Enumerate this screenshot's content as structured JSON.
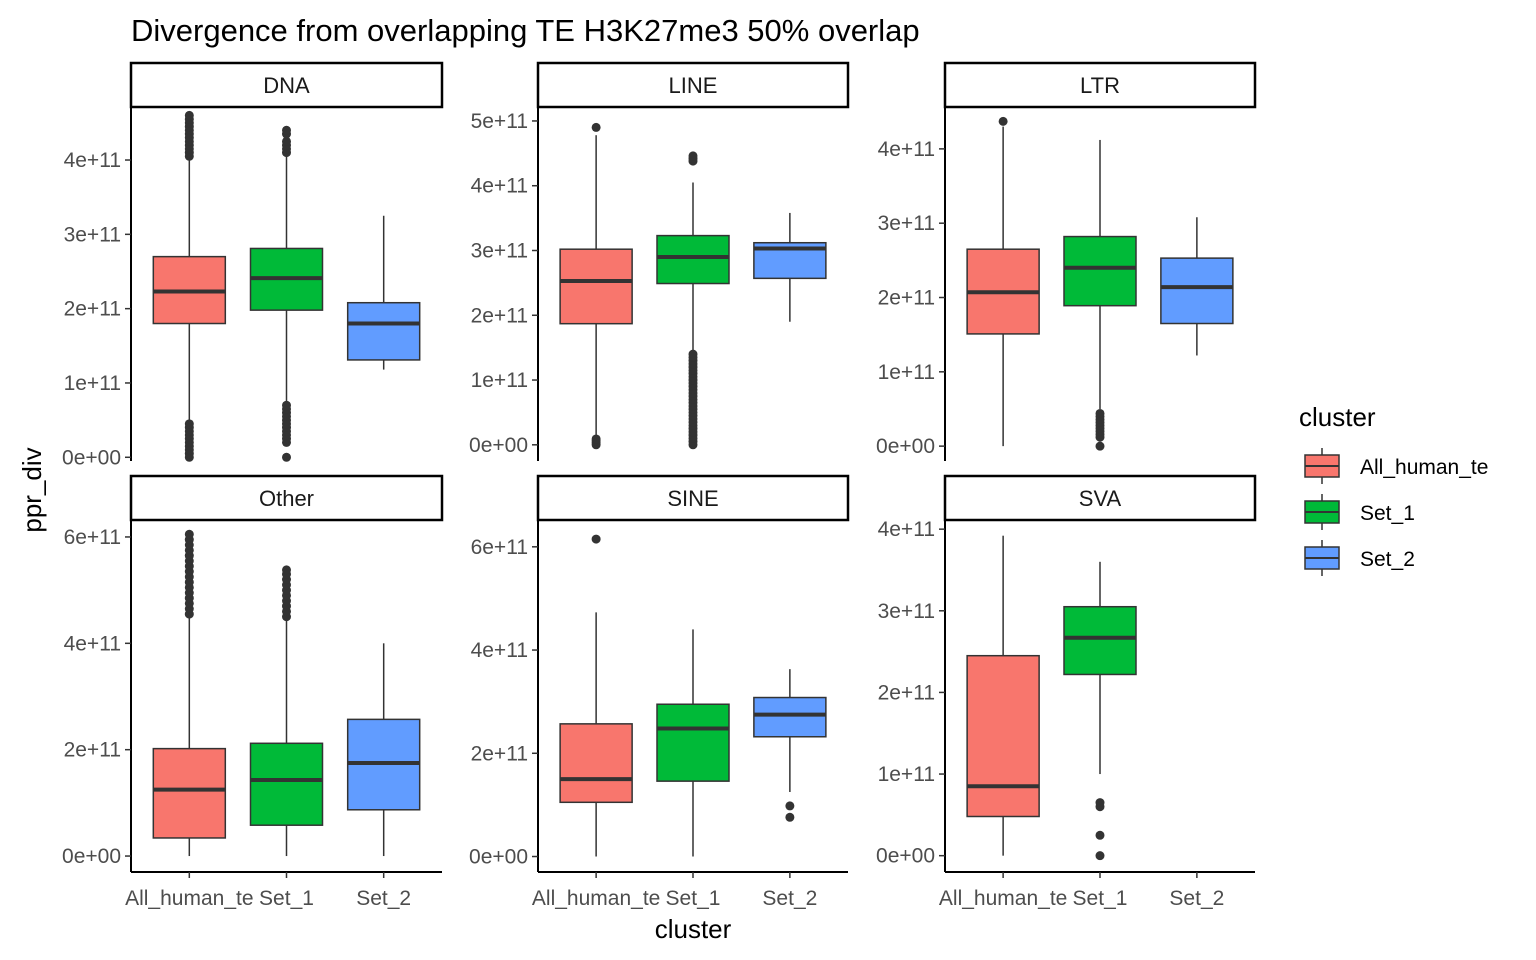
{
  "chart_data": {
    "type": "boxplot",
    "title": "Divergence from overlapping TE H3K27me3 50% overlap",
    "xlabel": "cluster",
    "ylabel": "ppr_div",
    "grid": false,
    "legend": {
      "title": "cluster",
      "position": "right",
      "entries": [
        {
          "label": "All_human_te",
          "color": "#F8766D"
        },
        {
          "label": "Set_1",
          "color": "#00BA38"
        },
        {
          "label": "Set_2",
          "color": "#619CFF"
        }
      ]
    },
    "categories": [
      "All_human_te",
      "Set_1",
      "Set_2"
    ],
    "facets": [
      {
        "name": "DNA",
        "ylim": [
          -5000000000.0,
          470000000000.0
        ],
        "yticks": [
          0,
          100000000000.0,
          200000000000.0,
          300000000000.0,
          400000000000.0
        ],
        "yticklabels": [
          "0e+00",
          "1e+11",
          "2e+11",
          "3e+11",
          "4e+11"
        ],
        "boxes": [
          {
            "category": "All_human_te",
            "lower": 50000000000.0,
            "q1": 180000000000.0,
            "median": 223000000000.0,
            "q3": 270000000000.0,
            "upper": 400000000000.0,
            "outliers": [
              0,
              5000000000.0,
              10000000000.0,
              15000000000.0,
              20000000000.0,
              25000000000.0,
              30000000000.0,
              35000000000.0,
              40000000000.0,
              45000000000.0,
              405000000000.0,
              410000000000.0,
              415000000000.0,
              420000000000.0,
              425000000000.0,
              430000000000.0,
              435000000000.0,
              440000000000.0,
              445000000000.0,
              450000000000.0,
              455000000000.0,
              460000000000.0
            ]
          },
          {
            "category": "Set_1",
            "lower": 75000000000.0,
            "q1": 198000000000.0,
            "median": 241000000000.0,
            "q3": 281000000000.0,
            "upper": 408000000000.0,
            "outliers": [
              0,
              20000000000.0,
              25000000000.0,
              30000000000.0,
              35000000000.0,
              40000000000.0,
              45000000000.0,
              50000000000.0,
              55000000000.0,
              60000000000.0,
              65000000000.0,
              70000000000.0,
              410000000000.0,
              415000000000.0,
              420000000000.0,
              425000000000.0,
              435000000000.0,
              440000000000.0
            ]
          },
          {
            "category": "Set_2",
            "lower": 118000000000.0,
            "q1": 131000000000.0,
            "median": 180000000000.0,
            "q3": 208000000000.0,
            "upper": 325000000000.0,
            "outliers": []
          }
        ]
      },
      {
        "name": "LINE",
        "ylim": [
          -25000000000.0,
          520000000000.0
        ],
        "yticks": [
          0,
          100000000000.0,
          200000000000.0,
          300000000000.0,
          400000000000.0,
          500000000000.0
        ],
        "yticklabels": [
          "0e+00",
          "1e+11",
          "2e+11",
          "3e+11",
          "4e+11",
          "5e+11"
        ],
        "boxes": [
          {
            "category": "All_human_te",
            "lower": 10000000000.0,
            "q1": 187000000000.0,
            "median": 253000000000.0,
            "q3": 302000000000.0,
            "upper": 478000000000.0,
            "outliers": [
              0,
              3000000000.0,
              6000000000.0,
              9000000000.0,
              490000000000.0
            ]
          },
          {
            "category": "Set_1",
            "lower": 142000000000.0,
            "q1": 249000000000.0,
            "median": 290000000000.0,
            "q3": 323000000000.0,
            "upper": 405000000000.0,
            "outliers": [
              0,
              5000000000.0,
              10000000000.0,
              15000000000.0,
              20000000000.0,
              25000000000.0,
              30000000000.0,
              35000000000.0,
              40000000000.0,
              45000000000.0,
              50000000000.0,
              55000000000.0,
              60000000000.0,
              65000000000.0,
              70000000000.0,
              75000000000.0,
              80000000000.0,
              85000000000.0,
              90000000000.0,
              95000000000.0,
              100000000000.0,
              105000000000.0,
              110000000000.0,
              115000000000.0,
              120000000000.0,
              125000000000.0,
              130000000000.0,
              135000000000.0,
              140000000000.0,
              438000000000.0,
              442000000000.0,
              446000000000.0
            ]
          },
          {
            "category": "Set_2",
            "lower": 190000000000.0,
            "q1": 257000000000.0,
            "median": 303000000000.0,
            "q3": 312000000000.0,
            "upper": 358000000000.0,
            "outliers": []
          }
        ]
      },
      {
        "name": "LTR",
        "ylim": [
          -20000000000.0,
          455000000000.0
        ],
        "yticks": [
          0,
          100000000000.0,
          200000000000.0,
          300000000000.0,
          400000000000.0
        ],
        "yticklabels": [
          "0e+00",
          "1e+11",
          "2e+11",
          "3e+11",
          "4e+11"
        ],
        "boxes": [
          {
            "category": "All_human_te",
            "lower": 0,
            "q1": 151000000000.0,
            "median": 207000000000.0,
            "q3": 265000000000.0,
            "upper": 430000000000.0,
            "outliers": [
              437000000000.0
            ]
          },
          {
            "category": "Set_1",
            "lower": 50000000000.0,
            "q1": 189000000000.0,
            "median": 240000000000.0,
            "q3": 282000000000.0,
            "upper": 412000000000.0,
            "outliers": [
              0,
              12000000000.0,
              16000000000.0,
              20000000000.0,
              24000000000.0,
              28000000000.0,
              32000000000.0,
              36000000000.0,
              40000000000.0,
              44000000000.0
            ]
          },
          {
            "category": "Set_2",
            "lower": 122000000000.0,
            "q1": 165000000000.0,
            "median": 214000000000.0,
            "q3": 253000000000.0,
            "upper": 308000000000.0,
            "outliers": []
          }
        ]
      },
      {
        "name": "Other",
        "ylim": [
          -30000000000.0,
          630000000000.0
        ],
        "yticks": [
          0,
          200000000000.0,
          400000000000.0,
          600000000000.0
        ],
        "yticklabels": [
          "0e+00",
          "2e+11",
          "4e+11",
          "6e+11"
        ],
        "boxes": [
          {
            "category": "All_human_te",
            "lower": 0,
            "q1": 34000000000.0,
            "median": 125000000000.0,
            "q3": 202000000000.0,
            "upper": 448000000000.0,
            "outliers": [
              455000000000.0,
              465000000000.0,
              475000000000.0,
              485000000000.0,
              495000000000.0,
              505000000000.0,
              515000000000.0,
              525000000000.0,
              535000000000.0,
              545000000000.0,
              555000000000.0,
              565000000000.0,
              575000000000.0,
              585000000000.0,
              595000000000.0,
              605000000000.0
            ]
          },
          {
            "category": "Set_1",
            "lower": 0,
            "q1": 58000000000.0,
            "median": 143000000000.0,
            "q3": 212000000000.0,
            "upper": 442000000000.0,
            "outliers": [
              450000000000.0,
              460000000000.0,
              470000000000.0,
              480000000000.0,
              490000000000.0,
              500000000000.0,
              510000000000.0,
              520000000000.0,
              530000000000.0,
              538000000000.0
            ]
          },
          {
            "category": "Set_2",
            "lower": 0,
            "q1": 87000000000.0,
            "median": 175000000000.0,
            "q3": 257000000000.0,
            "upper": 400000000000.0,
            "outliers": []
          }
        ]
      },
      {
        "name": "SINE",
        "ylim": [
          -30000000000.0,
          650000000000.0
        ],
        "yticks": [
          0,
          200000000000.0,
          400000000000.0,
          600000000000.0
        ],
        "yticklabels": [
          "0e+00",
          "2e+11",
          "4e+11",
          "6e+11"
        ],
        "boxes": [
          {
            "category": "All_human_te",
            "lower": 0,
            "q1": 105000000000.0,
            "median": 150000000000.0,
            "q3": 257000000000.0,
            "upper": 473000000000.0,
            "outliers": [
              615000000000.0
            ]
          },
          {
            "category": "Set_1",
            "lower": 0,
            "q1": 146000000000.0,
            "median": 248000000000.0,
            "q3": 295000000000.0,
            "upper": 440000000000.0,
            "outliers": []
          },
          {
            "category": "Set_2",
            "lower": 125000000000.0,
            "q1": 232000000000.0,
            "median": 275000000000.0,
            "q3": 308000000000.0,
            "upper": 363000000000.0,
            "outliers": [
              98000000000.0,
              76000000000.0
            ]
          }
        ]
      },
      {
        "name": "SVA",
        "ylim": [
          -20000000000.0,
          410000000000.0
        ],
        "yticks": [
          0,
          100000000000.0,
          200000000000.0,
          300000000000.0,
          400000000000.0
        ],
        "yticklabels": [
          "0e+00",
          "1e+11",
          "2e+11",
          "3e+11",
          "4e+11"
        ],
        "boxes": [
          {
            "category": "All_human_te",
            "lower": 0,
            "q1": 48000000000.0,
            "median": 85000000000.0,
            "q3": 245000000000.0,
            "upper": 392000000000.0,
            "outliers": []
          },
          {
            "category": "Set_1",
            "lower": 100000000000.0,
            "q1": 222000000000.0,
            "median": 267000000000.0,
            "q3": 305000000000.0,
            "upper": 360000000000.0,
            "outliers": [
              60000000000.0,
              65000000000.0,
              25000000000.0,
              0
            ]
          }
        ]
      }
    ]
  }
}
